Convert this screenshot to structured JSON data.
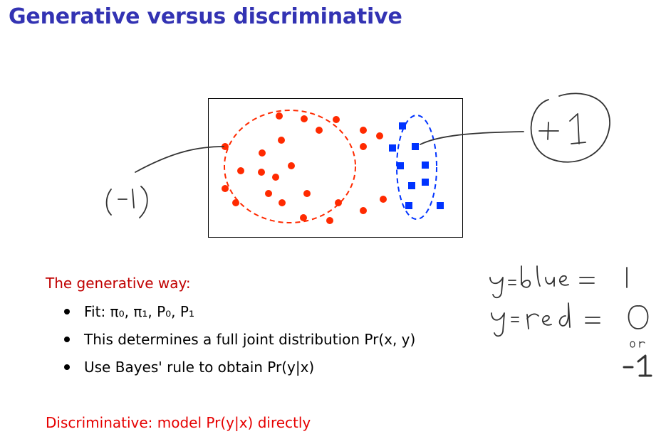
{
  "slide": {
    "title": "Generative versus discriminative"
  },
  "generative": {
    "heading": "The generative way:",
    "bullets": [
      "Fit: π₀, π₁, P₀, P₁",
      "This determines a full joint distribution Pr(x, y)",
      "Use Bayes' rule to obtain Pr(y|x)"
    ]
  },
  "discriminative": {
    "heading": "Discriminative: model Pr(y|x) directly"
  },
  "colors": {
    "title": "#3333b3",
    "heading_red": "#c00000",
    "red_points": "#ff2a00",
    "blue_points": "#0033ff",
    "ink": "#333333"
  },
  "icons": [
    "red-dot-icon",
    "blue-square-icon"
  ]
}
